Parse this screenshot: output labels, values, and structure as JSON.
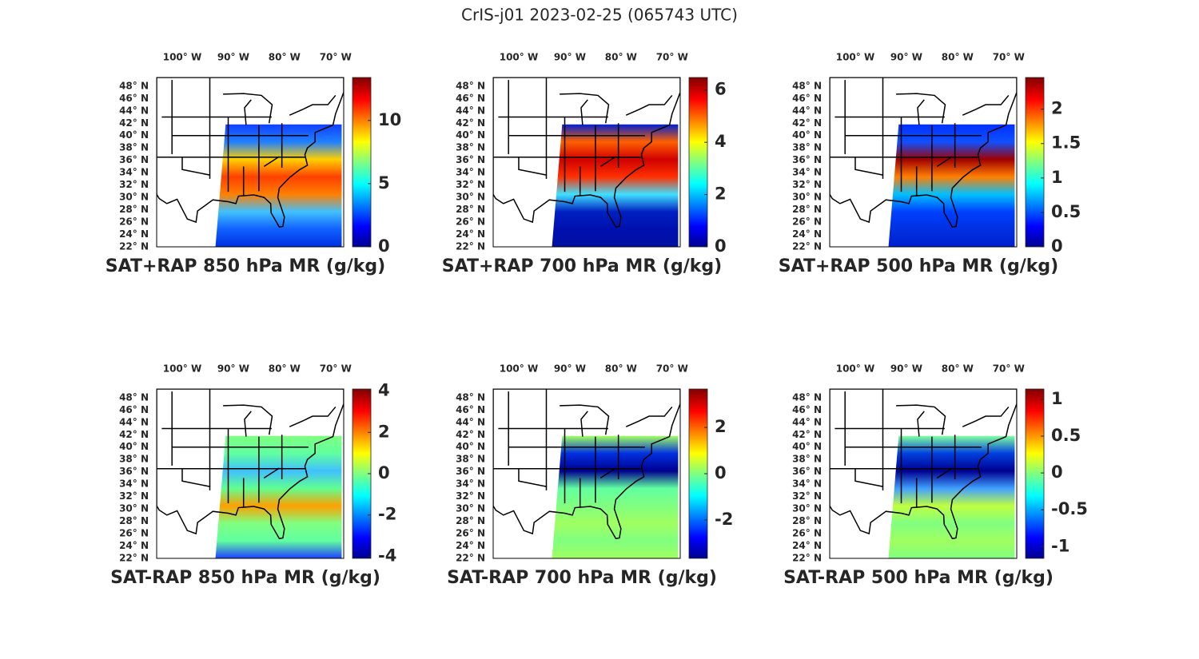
{
  "title": "CrIS-j01 2023-02-25 (065743 UTC)",
  "map": {
    "lon_range": [
      -105,
      -68.4
    ],
    "lat_range": [
      22,
      49.4
    ],
    "lon_ticks": [
      {
        "value": -100,
        "label": "100° W"
      },
      {
        "value": -90,
        "label": "90° W"
      },
      {
        "value": -80,
        "label": "80° W"
      },
      {
        "value": -70,
        "label": "70° W"
      }
    ],
    "lat_ticks": [
      {
        "value": 48,
        "label": "48° N"
      },
      {
        "value": 46,
        "label": "46° N"
      },
      {
        "value": 44,
        "label": "44° N"
      },
      {
        "value": 42,
        "label": "42° N"
      },
      {
        "value": 40,
        "label": "40° N"
      },
      {
        "value": 38,
        "label": "38° N"
      },
      {
        "value": 36,
        "label": "36° N"
      },
      {
        "value": 34,
        "label": "34° N"
      },
      {
        "value": 32,
        "label": "32° N"
      },
      {
        "value": 30,
        "label": "30° N"
      },
      {
        "value": 28,
        "label": "28° N"
      },
      {
        "value": 26,
        "label": "26° N"
      },
      {
        "value": 24,
        "label": "24° N"
      },
      {
        "value": 22,
        "label": "22° N"
      }
    ]
  },
  "panels": [
    {
      "label": "SAT+RAP 850 hPa MR (g/kg)",
      "colorbar": {
        "range": [
          0,
          13.4
        ],
        "ticks": [
          0,
          5,
          10
        ]
      }
    },
    {
      "label": "SAT+RAP 700 hPa MR (g/kg)",
      "colorbar": {
        "range": [
          0,
          6.48
        ],
        "ticks": [
          0,
          2,
          4,
          6
        ]
      }
    },
    {
      "label": "SAT+RAP 500 hPa MR (g/kg)",
      "colorbar": {
        "range": [
          0,
          2.46
        ],
        "ticks": [
          0,
          0.5,
          1,
          1.5,
          2
        ]
      }
    },
    {
      "label": "SAT-RAP 850 hPa MR (g/kg)",
      "colorbar": {
        "range": [
          -4.1,
          4.1
        ],
        "ticks": [
          -4,
          -2,
          0,
          2,
          4
        ]
      }
    },
    {
      "label": "SAT-RAP 700 hPa MR (g/kg)",
      "colorbar": {
        "range": [
          -3.66,
          3.66
        ],
        "ticks": [
          -2,
          0,
          2
        ]
      }
    },
    {
      "label": "SAT-RAP 500 hPa MR (g/kg)",
      "colorbar": {
        "range": [
          -1.16,
          1.14
        ],
        "ticks": [
          -1,
          -0.5,
          0,
          0.5,
          1
        ]
      }
    }
  ]
}
